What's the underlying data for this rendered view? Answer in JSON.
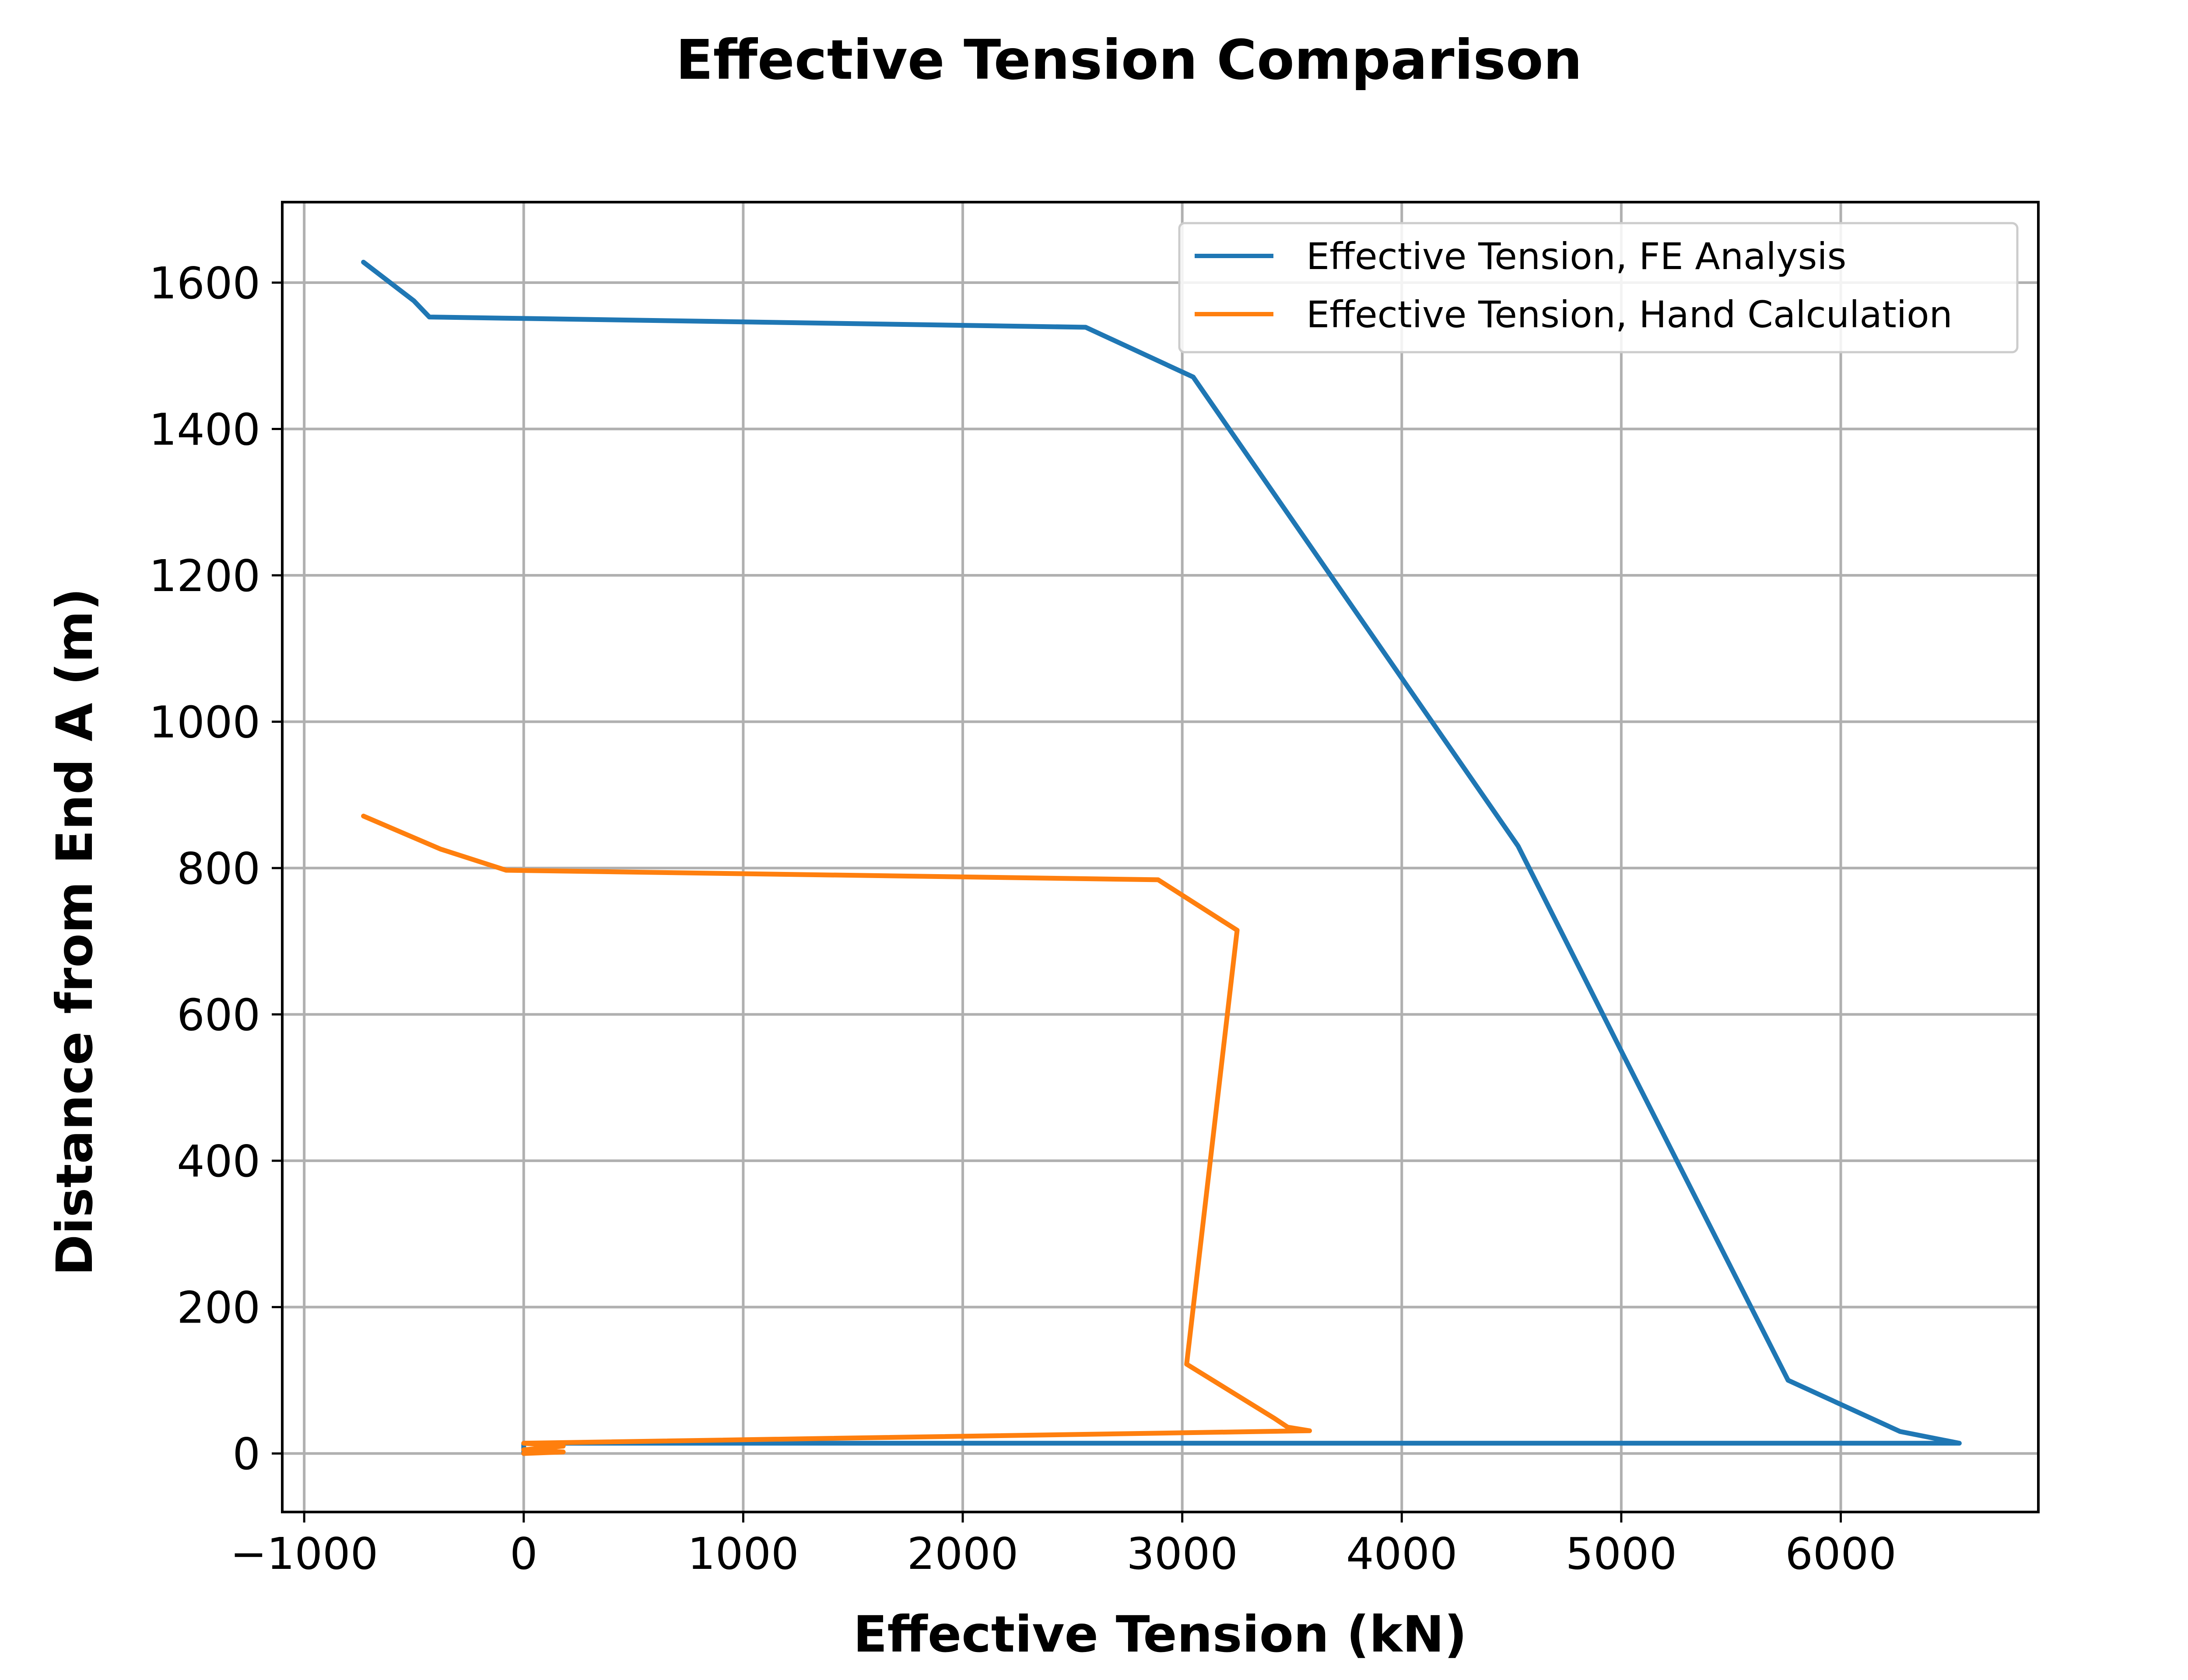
{
  "chart_data": {
    "type": "line",
    "title": "Effective Tension Comparison",
    "xlabel": "Effective Tension (kN)",
    "ylabel": "Distance from End A (m)",
    "xlim": [
      -1100,
      6900
    ],
    "ylim": [
      -80,
      1710
    ],
    "xticks": [
      -1000,
      0,
      1000,
      2000,
      3000,
      4000,
      5000,
      6000
    ],
    "xtick_labels": [
      "−1000",
      "0",
      "1000",
      "2000",
      "3000",
      "4000",
      "5000",
      "6000"
    ],
    "yticks": [
      0,
      200,
      400,
      600,
      800,
      1000,
      1200,
      1400,
      1600
    ],
    "ytick_labels": [
      "0",
      "200",
      "400",
      "600",
      "800",
      "1000",
      "1200",
      "1400",
      "1600"
    ],
    "grid": true,
    "legend_position": "upper-right",
    "series": [
      {
        "name": "Effective Tension, FE Analysis",
        "color": "#1f77b4",
        "x": [
          -730,
          -500,
          -430,
          0,
          2560,
          3050,
          4530,
          5000,
          5760,
          6270,
          6540,
          0,
          0
        ],
        "y": [
          1628,
          1575,
          1553,
          1551,
          1539,
          1471,
          830,
          550,
          100,
          30,
          14,
          14,
          0
        ]
      },
      {
        "name": "Effective Tension, Hand Calculation",
        "color": "#ff7f0e",
        "x": [
          -730,
          -380,
          -80,
          2890,
          3250,
          3020,
          3420,
          3480,
          3580,
          0,
          180,
          0,
          180,
          0
        ],
        "y": [
          871,
          826,
          797,
          784,
          715,
          122,
          48,
          36,
          31,
          14,
          10,
          5,
          2,
          0
        ]
      }
    ]
  }
}
